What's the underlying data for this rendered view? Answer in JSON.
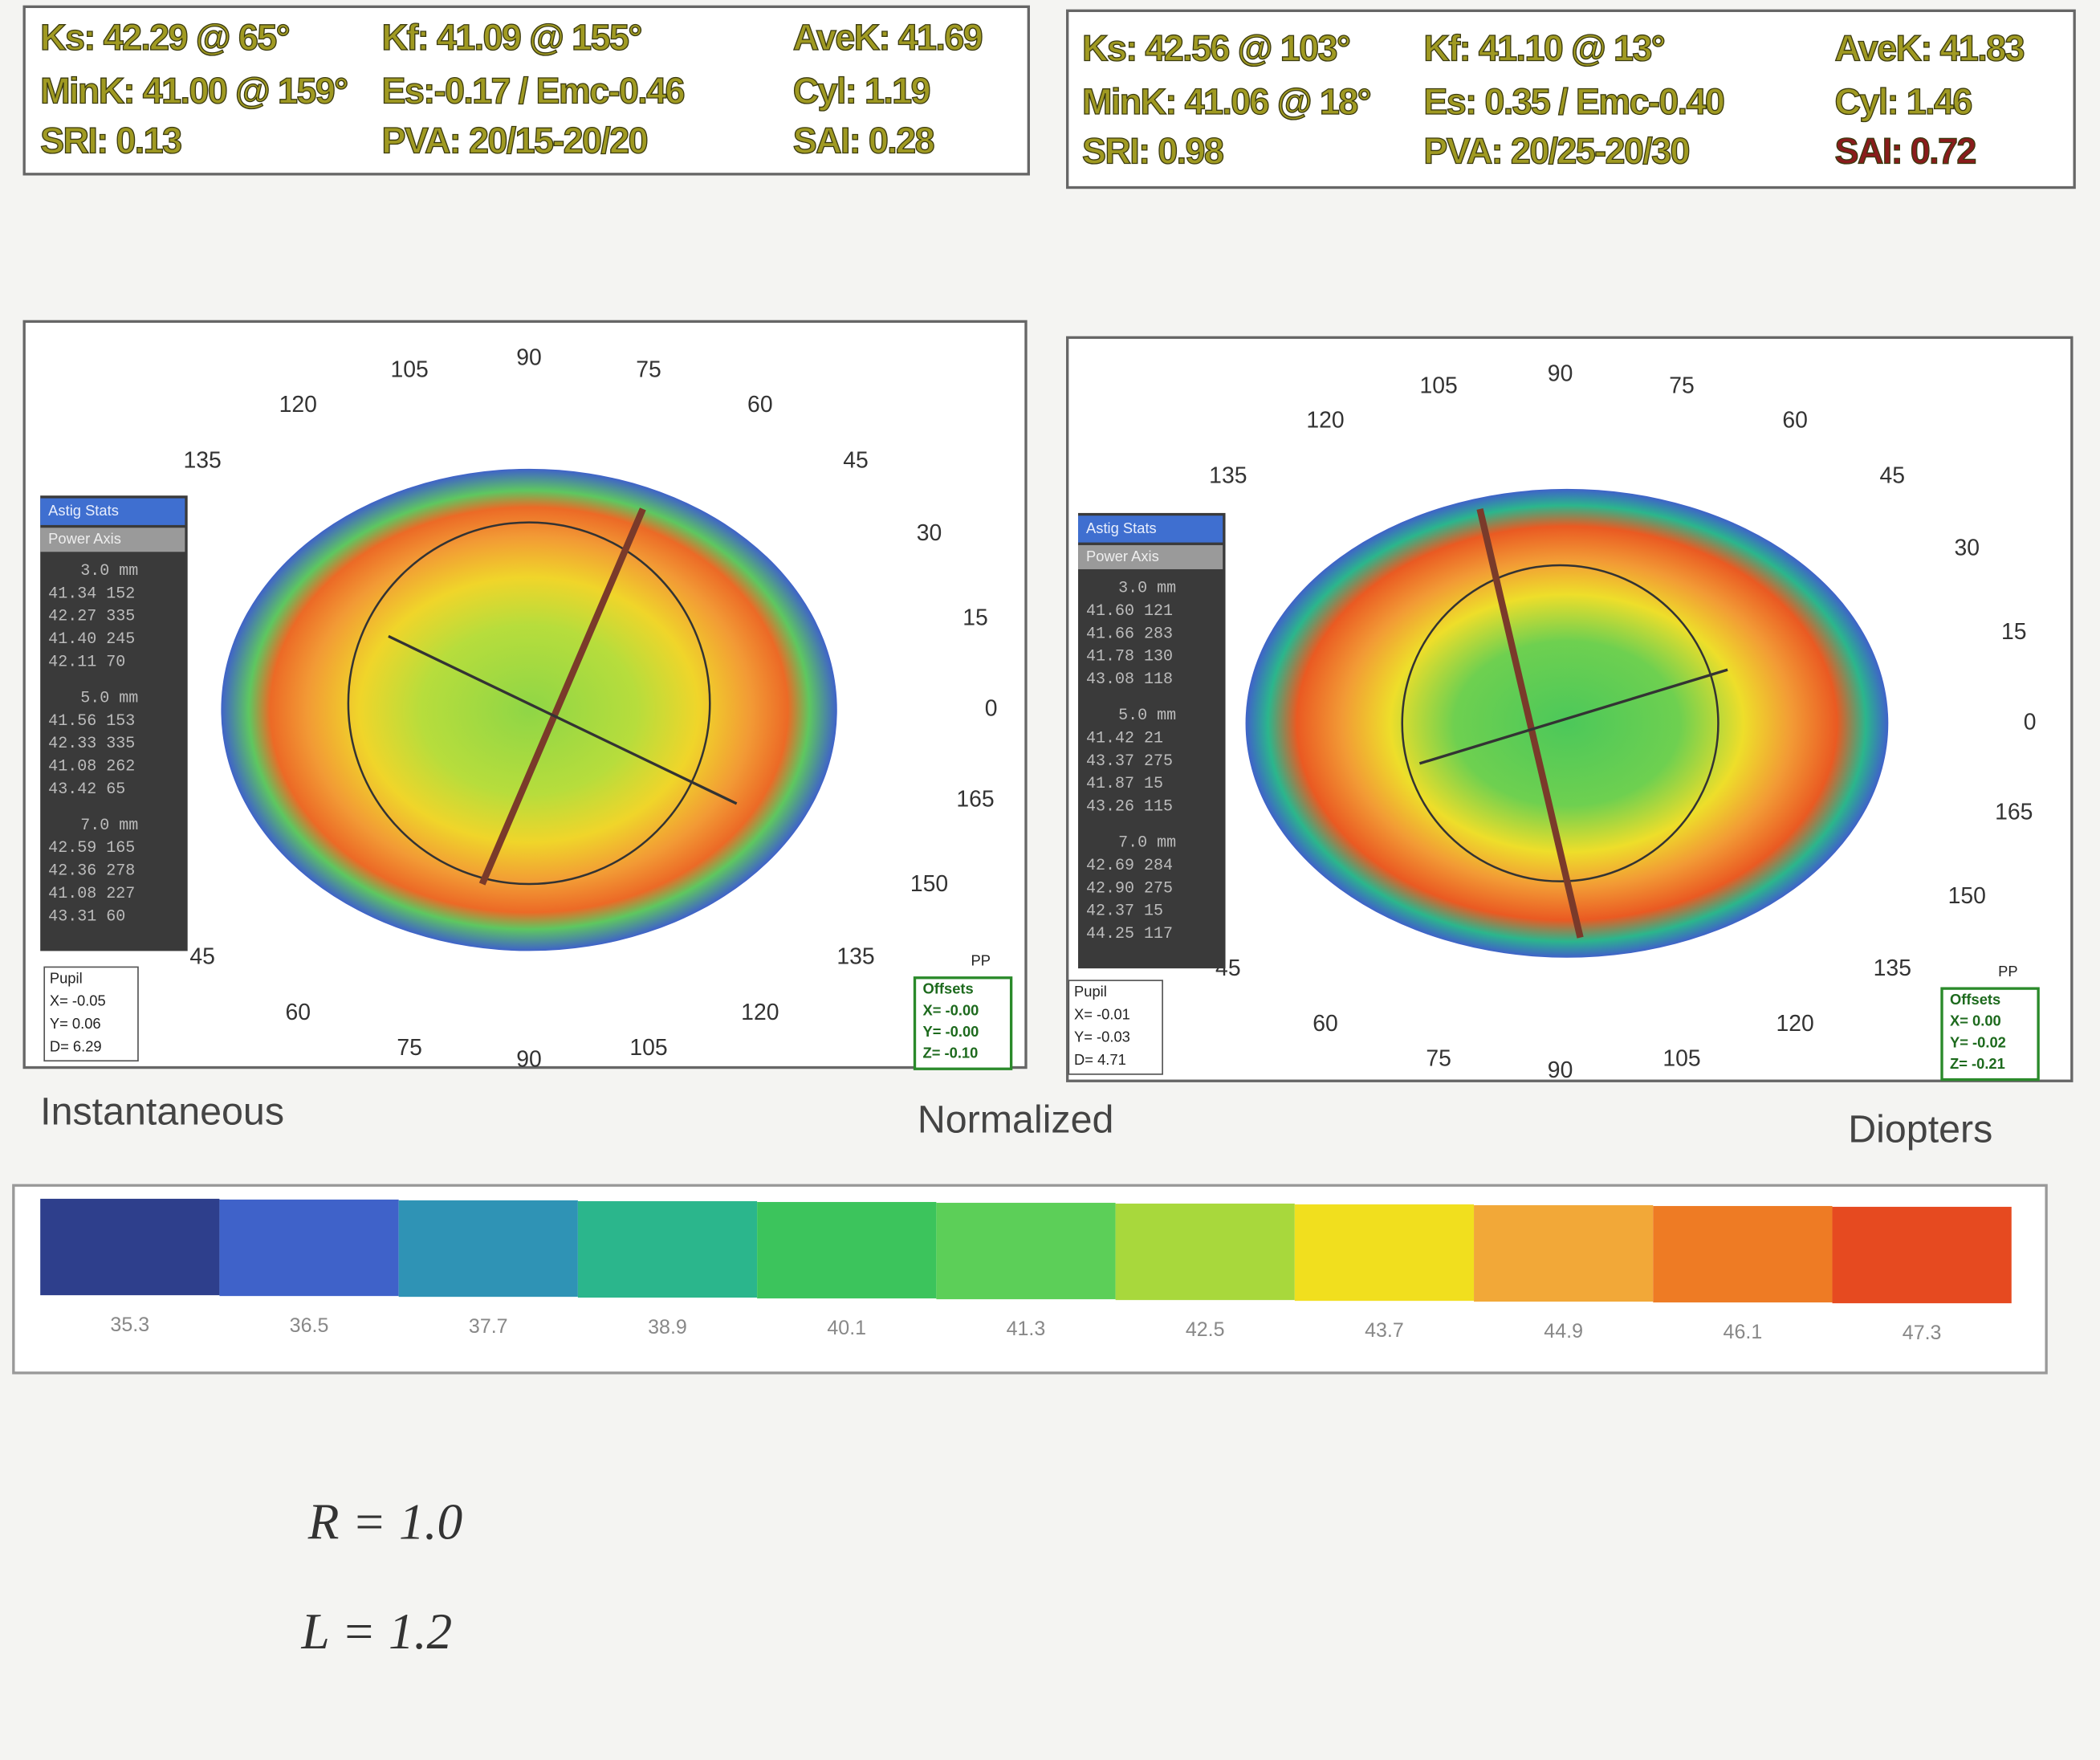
{
  "panels": [
    {
      "stats": [
        [
          "Ks: 42.29 @ 65°",
          "Kf: 41.09 @ 155°",
          "AveK: 41.69"
        ],
        [
          "MinK: 41.00 @ 159°",
          "Es:-0.17 / Emc-0.46",
          "Cyl:  1.19"
        ],
        [
          "SRI: 0.13",
          "PVA: 20/15-20/20",
          "SAI: 0.28"
        ]
      ],
      "top_ring": [
        135,
        120,
        105,
        90,
        75,
        60,
        45,
        30,
        15,
        0
      ],
      "bottom_ring": [
        165,
        150,
        135,
        120,
        105,
        90,
        75,
        60,
        45
      ],
      "side_table": {
        "heading": "Astig Stats",
        "subheading": "Power Axis",
        "sections": [
          {
            "title": "3.0 mm",
            "rows": [
              "41.34  152",
              "42.27  335",
              "41.40  245",
              "42.11   70"
            ]
          },
          {
            "title": "5.0 mm",
            "rows": [
              "41.56  153",
              "42.33  335",
              "41.08  262",
              "43.42   65"
            ]
          },
          {
            "title": "7.0 mm",
            "rows": [
              "42.59  165",
              "42.36  278",
              "41.08  227",
              "43.31   60"
            ]
          }
        ]
      },
      "pupil": [
        "Pupil",
        "X= -0.05",
        "Y=  0.06",
        "D=  6.29"
      ],
      "offsets": [
        "Offsets",
        "X= -0.00",
        "Y= -0.00",
        "Z= -0.10"
      ],
      "corner": "PP"
    },
    {
      "stats": [
        [
          "Ks: 42.56 @ 103°",
          "Kf: 41.10 @  13°",
          "AveK: 41.83"
        ],
        [
          "MinK: 41.06 @  18°",
          "Es: 0.35 / Emc-0.40",
          "Cyl:  1.46"
        ],
        [
          "SRI: 0.98",
          "PVA: 20/25-20/30",
          "SAI: 0.72"
        ]
      ],
      "top_ring": [
        135,
        120,
        105,
        90,
        75,
        60,
        45,
        30,
        15,
        0
      ],
      "bottom_ring": [
        165,
        150,
        135,
        120,
        105,
        90,
        75,
        60,
        45
      ],
      "side_table": {
        "heading": "Astig Stats",
        "subheading": "Power Axis",
        "sections": [
          {
            "title": "3.0 mm",
            "rows": [
              "41.60  121",
              "41.66  283",
              "41.78  130",
              "43.08  118"
            ]
          },
          {
            "title": "5.0 mm",
            "rows": [
              "41.42   21",
              "43.37  275",
              "41.87   15",
              "43.26  115"
            ]
          },
          {
            "title": "7.0 mm",
            "rows": [
              "42.69  284",
              "42.90  275",
              "42.37   15",
              "44.25  117"
            ]
          }
        ]
      },
      "pupil": [
        "Pupil",
        "X= -0.01",
        "Y= -0.03",
        "D=  4.71"
      ],
      "offsets": [
        "Offsets",
        "X=  0.00",
        "Y= -0.02",
        "Z= -0.21"
      ],
      "corner": "PP"
    }
  ],
  "captions": [
    "Instantaneous",
    "Normalized",
    "Diopters"
  ],
  "scale": {
    "values": [
      35.3,
      36.5,
      37.7,
      38.9,
      40.1,
      41.3,
      42.5,
      43.7,
      44.9,
      46.1,
      47.3
    ],
    "colors": [
      "#2e3f8c",
      "#3f62c9",
      "#2f93b5",
      "#2bb68c",
      "#3cc45c",
      "#5ccf58",
      "#a8d83c",
      "#f1df1e",
      "#f2a838",
      "#ee7b24",
      "#e64a20"
    ]
  },
  "handwriting": [
    "R = 1.0",
    "L = 1.2"
  ]
}
